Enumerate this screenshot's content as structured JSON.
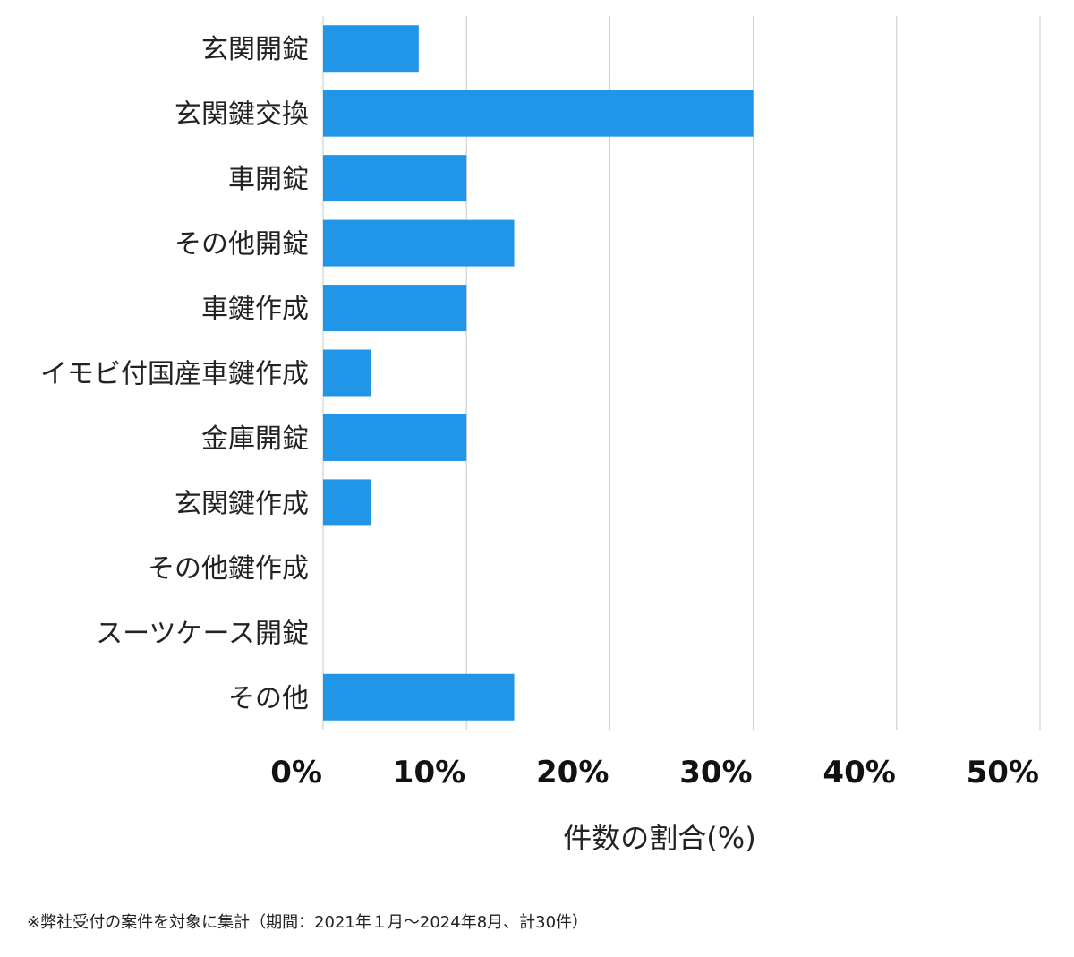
{
  "chart_data": {
    "type": "bar",
    "orientation": "horizontal",
    "categories": [
      "玄関開錠",
      "玄関鍵交換",
      "車開錠",
      "その他開錠",
      "車鍵作成",
      "イモビ付国産車鍵作成",
      "金庫開錠",
      "玄関鍵作成",
      "その他鍵作成",
      "スーツケース開錠",
      "その他"
    ],
    "values": [
      6.67,
      30.0,
      10.0,
      13.33,
      10.0,
      3.33,
      10.0,
      3.33,
      0,
      0,
      13.33
    ],
    "xlabel": "件数の割合(%)",
    "ylabel": "",
    "xlim": [
      0,
      50
    ],
    "xticks": [
      0,
      10,
      20,
      30,
      40,
      50
    ],
    "xtick_labels": [
      "0%",
      "10%",
      "20%",
      "30%",
      "40%",
      "50%"
    ],
    "grid": "vertical",
    "color": "#2196E8"
  },
  "footnote": "※弊社受付の案件を対象に集計（期間：2021年１月〜2024年8月、計30件）"
}
